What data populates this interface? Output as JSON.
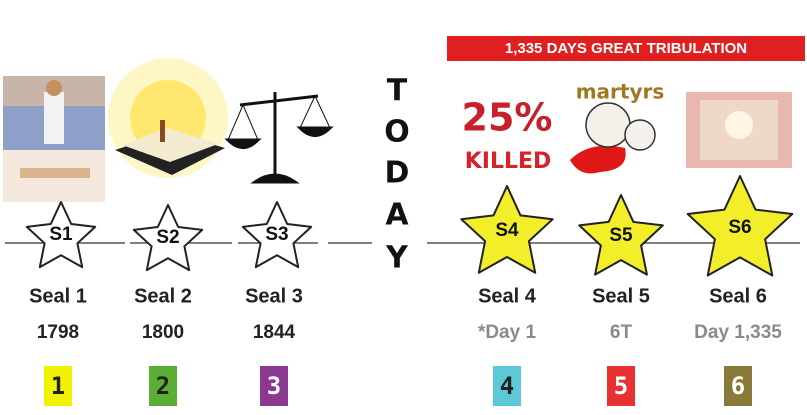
{
  "banner": "1,335 DAYS GREAT TRIBULATION",
  "today": [
    "T",
    "O",
    "D",
    "A",
    "Y"
  ],
  "annotations": {
    "percent": "25%",
    "killed": "KILLED",
    "martyrs": "martyrs"
  },
  "seals": [
    {
      "star": "S1",
      "name": "Seal 1",
      "date": "1798",
      "number": "1"
    },
    {
      "star": "S2",
      "name": "Seal 2",
      "date": "1800",
      "number": "2"
    },
    {
      "star": "S3",
      "name": "Seal 3",
      "date": "1844",
      "number": "3"
    },
    {
      "star": "S4",
      "name": "Seal 4",
      "date": "*Day 1",
      "number": "4"
    },
    {
      "star": "S5",
      "name": "Seal 5",
      "date": "6T",
      "number": "5"
    },
    {
      "star": "S6",
      "name": "Seal 6",
      "date": "Day 1,335",
      "number": "6"
    }
  ]
}
